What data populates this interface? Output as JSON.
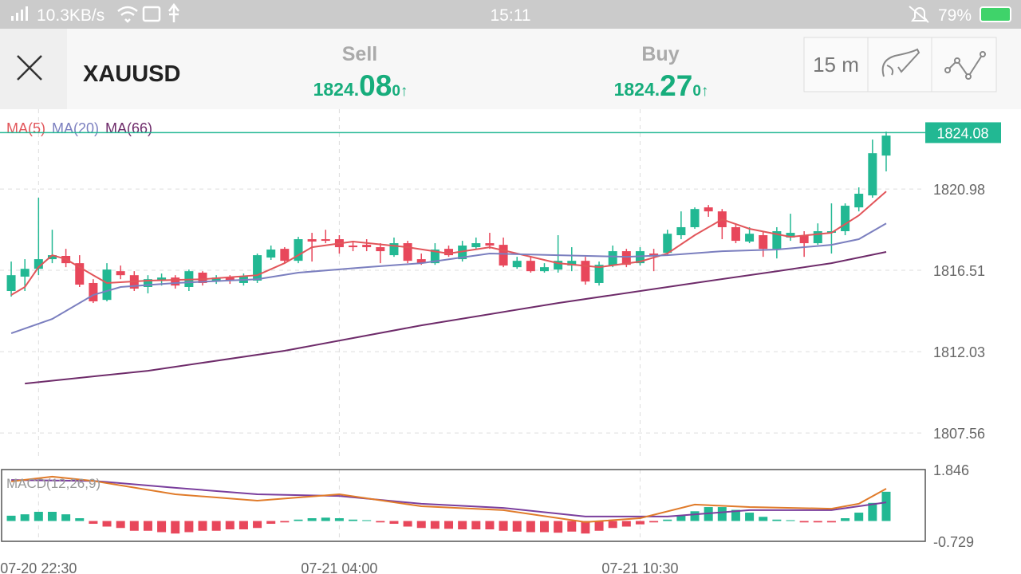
{
  "status_bar": {
    "speed": "10.3KB/s",
    "time": "15:11",
    "battery": "79%"
  },
  "header": {
    "symbol": "XAUUSD",
    "sell": {
      "label": "Sell",
      "price_main": "1824.",
      "price_big": "08",
      "price_small": "0",
      "arrow": "↑"
    },
    "buy": {
      "label": "Buy",
      "price_main": "1824.",
      "price_big": "27",
      "price_small": "0",
      "arrow": "↑"
    },
    "timeframe": "15 m"
  },
  "chart_data": {
    "type": "candlestick",
    "xlim": [
      -0.82,
      66.86
    ],
    "xticks": [
      {
        "value": 2,
        "label": "07-20 22:30"
      },
      {
        "value": 24,
        "label": "07-21 04:00"
      },
      {
        "value": 46,
        "label": "07-21 10:30"
      }
    ],
    "ylim": [
      1806.16,
      1825.37
    ],
    "yticks": [
      1820.98,
      1816.51,
      1812.03,
      1807.56
    ],
    "grid": true,
    "last_price": 1824.08,
    "up_color": "#22b893",
    "down_color": "#e8475b",
    "candles": {
      "open": [
        1815.37,
        1816.16,
        1816.59,
        1817.12,
        1817.3,
        1816.9,
        1815.81,
        1814.88,
        1816.46,
        1816.24,
        1815.59,
        1815.94,
        1816.11,
        1815.59,
        1816.38,
        1815.89,
        1816.11,
        1815.81,
        1815.94,
        1817.21,
        1817.69,
        1817.03,
        1818.22,
        1818.22,
        1818.22,
        1817.87,
        1817.91,
        1817.78,
        1817.34,
        1818.0,
        1817.12,
        1816.9,
        1817.69,
        1817.12,
        1817.78,
        1818.0,
        1817.91,
        1816.68,
        1817.03,
        1816.46,
        1816.55,
        1816.77,
        1817.03,
        1815.81,
        1816.77,
        1817.56,
        1816.9,
        1817.43,
        1817.47,
        1818.44,
        1818.88,
        1819.97,
        1819.75,
        1818.88,
        1818.09,
        1818.44,
        1817.69,
        1818.31,
        1818.44,
        1818.0,
        1818.57,
        1818.66,
        1819.97,
        1820.63,
        1822.82
      ],
      "high": [
        1816.99,
        1817.12,
        1820.5,
        1818.74,
        1817.69,
        1817.34,
        1816.02,
        1816.9,
        1816.77,
        1816.46,
        1816.24,
        1816.33,
        1816.24,
        1816.55,
        1816.46,
        1816.24,
        1816.24,
        1816.33,
        1817.43,
        1817.87,
        1817.78,
        1818.35,
        1818.57,
        1818.74,
        1818.44,
        1818.13,
        1818.22,
        1818.0,
        1818.31,
        1818.13,
        1817.43,
        1818.0,
        1817.87,
        1818.13,
        1818.31,
        1818.57,
        1818.31,
        1817.25,
        1817.25,
        1816.9,
        1818.44,
        1817.78,
        1817.25,
        1816.99,
        1817.87,
        1817.69,
        1817.78,
        1817.69,
        1818.74,
        1819.75,
        1819.97,
        1820.1,
        1819.88,
        1819.09,
        1818.88,
        1818.66,
        1818.88,
        1819.62,
        1818.66,
        1819.09,
        1820.19,
        1820.19,
        1821.07,
        1823.7,
        1824.14
      ],
      "low": [
        1815.06,
        1815.37,
        1816.24,
        1816.9,
        1816.68,
        1815.59,
        1814.71,
        1814.8,
        1816.02,
        1815.37,
        1815.24,
        1815.67,
        1815.5,
        1815.37,
        1815.67,
        1815.76,
        1815.76,
        1815.67,
        1815.81,
        1817.08,
        1816.9,
        1816.9,
        1816.99,
        1818.0,
        1817.43,
        1817.56,
        1817.56,
        1816.9,
        1817.25,
        1816.9,
        1816.81,
        1816.81,
        1817.25,
        1816.99,
        1817.69,
        1817.69,
        1816.68,
        1816.59,
        1816.38,
        1816.38,
        1816.38,
        1816.46,
        1815.72,
        1815.67,
        1816.68,
        1816.68,
        1816.77,
        1816.46,
        1817.34,
        1818.22,
        1818.79,
        1819.45,
        1818.22,
        1818.0,
        1818.0,
        1817.25,
        1817.16,
        1818.13,
        1817.25,
        1817.91,
        1817.43,
        1818.44,
        1819.75,
        1820.5,
        1821.95
      ],
      "close": [
        1816.24,
        1816.59,
        1817.12,
        1817.34,
        1816.9,
        1815.72,
        1814.8,
        1816.55,
        1816.24,
        1815.5,
        1816.02,
        1816.11,
        1815.67,
        1816.46,
        1815.81,
        1816.11,
        1815.94,
        1816.2,
        1817.34,
        1817.65,
        1817.03,
        1818.22,
        1818.09,
        1818.13,
        1817.78,
        1817.78,
        1817.78,
        1817.56,
        1818.0,
        1817.03,
        1816.9,
        1817.65,
        1817.34,
        1817.87,
        1818.0,
        1817.87,
        1816.77,
        1817.03,
        1816.46,
        1816.68,
        1817.03,
        1817.03,
        1815.89,
        1816.81,
        1817.56,
        1816.81,
        1817.56,
        1817.34,
        1818.52,
        1818.88,
        1819.88,
        1819.75,
        1818.88,
        1818.13,
        1818.52,
        1817.69,
        1818.66,
        1818.57,
        1818.0,
        1818.66,
        1818.66,
        1820.06,
        1820.72,
        1822.95,
        1823.92
      ]
    },
    "series": [
      {
        "name": "MA(5)",
        "color": "#e2555a",
        "x": [
          0,
          1,
          2,
          3,
          4,
          6,
          7,
          10,
          14,
          18,
          20,
          22,
          25,
          29,
          32,
          35,
          37,
          40,
          43,
          46,
          48,
          50,
          52,
          54,
          57,
          60,
          62,
          64
        ],
        "values": [
          1815.15,
          1815.59,
          1816.68,
          1817.34,
          1817.12,
          1816.24,
          1815.81,
          1815.94,
          1816.02,
          1816.24,
          1816.9,
          1817.78,
          1818.09,
          1817.78,
          1817.43,
          1817.78,
          1817.43,
          1816.9,
          1816.68,
          1816.99,
          1817.43,
          1818.44,
          1819.31,
          1818.79,
          1818.35,
          1818.57,
          1819.53,
          1820.85
        ]
      },
      {
        "name": "MA(20)",
        "color": "#7b7fbf",
        "x": [
          0,
          3,
          6,
          8,
          12,
          18,
          21,
          26,
          30,
          35,
          40,
          45,
          48,
          52,
          56,
          60,
          62,
          64
        ],
        "values": [
          1813.04,
          1813.83,
          1815.15,
          1815.59,
          1815.81,
          1816.02,
          1816.38,
          1816.68,
          1816.9,
          1817.43,
          1817.34,
          1817.25,
          1817.34,
          1817.56,
          1817.65,
          1817.91,
          1818.22,
          1819.09
        ]
      },
      {
        "name": "MA(66)",
        "color": "#6e2b6a",
        "x": [
          1,
          10,
          20,
          30,
          40,
          50,
          56,
          60,
          64
        ],
        "values": [
          1810.28,
          1810.98,
          1812.08,
          1813.48,
          1814.71,
          1815.81,
          1816.46,
          1816.9,
          1817.52
        ]
      }
    ],
    "macd": {
      "title": "MACD(12,26,9)",
      "ylim": [
        -0.729,
        1.846
      ],
      "yticks": [
        1.846,
        -0.729
      ],
      "histogram": [
        0.19,
        0.24,
        0.33,
        0.33,
        0.24,
        0.1,
        -0.1,
        -0.2,
        -0.25,
        -0.35,
        -0.35,
        -0.4,
        -0.45,
        -0.4,
        -0.35,
        -0.35,
        -0.3,
        -0.3,
        -0.25,
        -0.1,
        -0.05,
        0.05,
        0.1,
        0.12,
        0.1,
        0.05,
        0.03,
        -0.05,
        -0.1,
        -0.2,
        -0.25,
        -0.28,
        -0.28,
        -0.3,
        -0.3,
        -0.3,
        -0.35,
        -0.38,
        -0.4,
        -0.4,
        -0.42,
        -0.38,
        -0.45,
        -0.35,
        -0.25,
        -0.2,
        -0.12,
        -0.05,
        0.05,
        0.2,
        0.35,
        0.5,
        0.5,
        0.4,
        0.3,
        0.15,
        0.05,
        0.03,
        -0.05,
        -0.05,
        -0.05,
        0.1,
        0.3,
        0.65,
        1.05
      ],
      "lines": [
        {
          "color": "#7a3e9d",
          "x": [
            0,
            6,
            12,
            18,
            24,
            30,
            36,
            42,
            48,
            54,
            60,
            64
          ],
          "values": [
            1.47,
            1.44,
            1.19,
            0.96,
            0.9,
            0.62,
            0.47,
            0.16,
            0.16,
            0.39,
            0.39,
            0.67
          ]
        },
        {
          "color": "#e07b2a",
          "x": [
            0,
            3,
            6,
            12,
            18,
            24,
            30,
            36,
            42,
            46,
            50,
            54,
            60,
            62,
            64
          ],
          "values": [
            1.42,
            1.59,
            1.44,
            0.96,
            0.73,
            0.96,
            0.53,
            0.39,
            -0.04,
            0.1,
            0.59,
            0.5,
            0.44,
            0.62,
            1.16
          ]
        }
      ]
    }
  }
}
